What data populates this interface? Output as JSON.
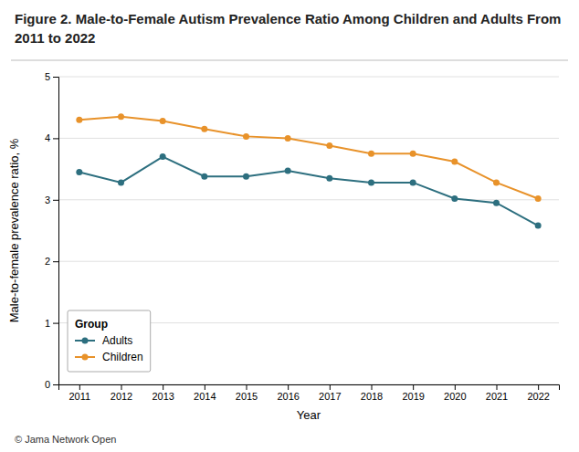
{
  "chart_data": {
    "type": "line",
    "title": "Figure 2. Male-to-Female Autism Prevalence Ratio Among Children and Adults From 2011 to 2022",
    "x_label": "Year",
    "y_label": "Male-to-female prevalence ratio, %",
    "x": [
      2011,
      2012,
      2013,
      2014,
      2015,
      2016,
      2017,
      2018,
      2019,
      2020,
      2021,
      2022
    ],
    "series": [
      {
        "name": "Adults",
        "color": "#2d6f7f",
        "values": [
          3.45,
          3.28,
          3.7,
          3.38,
          3.38,
          3.47,
          3.35,
          3.28,
          3.28,
          3.02,
          2.95,
          2.58
        ]
      },
      {
        "name": "Children",
        "color": "#e8922a",
        "values": [
          4.3,
          4.35,
          4.28,
          4.15,
          4.03,
          4.0,
          3.88,
          3.75,
          3.75,
          3.62,
          3.28,
          3.02
        ]
      }
    ],
    "xlim": [
      2010.5,
      2022.5
    ],
    "xticks": [
      2011,
      2012,
      2013,
      2014,
      2015,
      2016,
      2017,
      2018,
      2019,
      2020,
      2021,
      2022
    ],
    "ylim": [
      0,
      5
    ],
    "yticks": [
      0,
      1,
      2,
      3,
      4,
      5
    ],
    "grid": true,
    "legend": "lower left",
    "legend_title": "Group",
    "marker": "circle",
    "annotations": [
      "© Jama Network Open"
    ]
  }
}
